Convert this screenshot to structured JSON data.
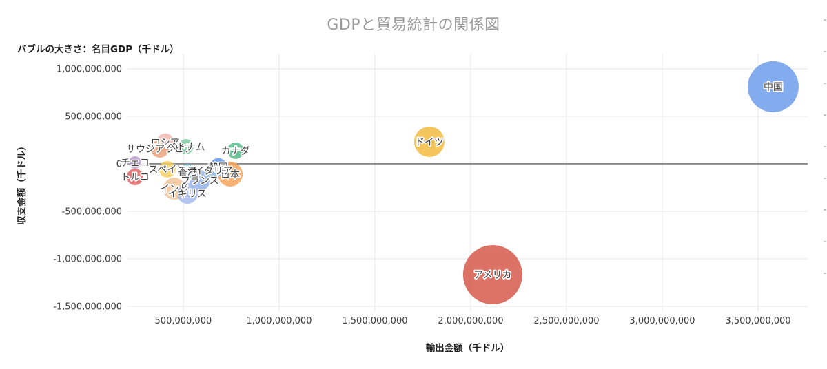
{
  "chart_data": {
    "type": "bubble",
    "title": "GDPと貿易統計の関係図",
    "size_note": "バブルの大きさ：名目GDP（千ドル）",
    "xlabel": "輸出金額（千ドル）",
    "ylabel": "収支金額（千ドル）",
    "xlim": [
      209000000,
      3759000000
    ],
    "ylim": [
      -1558000000,
      1159000000
    ],
    "x_ticks": [
      500000000,
      1000000000,
      1500000000,
      2000000000,
      2500000000,
      3000000000,
      3500000000
    ],
    "y_ticks": [
      1000000000,
      500000000,
      0,
      -500000000,
      -1000000000,
      -1500000000
    ],
    "grid": true,
    "legend_position": "none",
    "points": [
      {
        "label": "中国",
        "x": 3579000000,
        "y": 812000000,
        "r": 37,
        "color": "#6d9eeb"
      },
      {
        "label": "アメリカ",
        "x": 2115000000,
        "y": -1167000000,
        "r": 43,
        "color": "#d6594b"
      },
      {
        "label": "ドイツ",
        "x": 1784000000,
        "y": 232000000,
        "r": 22,
        "color": "#f2bb3f"
      },
      {
        "label": "日本",
        "x": 745000000,
        "y": -109000000,
        "r": 18,
        "color": "#f6a55c"
      },
      {
        "label": "韓国",
        "x": 683000000,
        "y": -36000000,
        "r": 13,
        "color": "#5e97f6"
      },
      {
        "label": "カナダ",
        "x": 773000000,
        "y": 138000000,
        "r": 12,
        "color": "#57bb8a"
      },
      {
        "label": "イタリア",
        "x": 658000000,
        "y": -72000000,
        "r": 12,
        "color": "#9dc3e6"
      },
      {
        "label": "香港",
        "x": 522000000,
        "y": -80000000,
        "r": 11,
        "color": "#7ec8d2"
      },
      {
        "label": "フランス",
        "x": 586000000,
        "y": -174000000,
        "r": 15,
        "color": "#94b3f0"
      },
      {
        "label": "イギリス",
        "x": 522000000,
        "y": -312000000,
        "r": 15,
        "color": "#a5b8ea"
      },
      {
        "label": "インド",
        "x": 453000000,
        "y": -261000000,
        "r": 16,
        "color": "#f3c59a"
      },
      {
        "label": "スペイン",
        "x": 417000000,
        "y": -58000000,
        "r": 12,
        "color": "#f5cf5e"
      },
      {
        "label": "ベトナム",
        "x": 514000000,
        "y": 181000000,
        "r": 11,
        "color": "#80cba4"
      },
      {
        "label": "ロシア",
        "x": 406000000,
        "y": 225000000,
        "r": 13,
        "color": "#f3b8b0"
      },
      {
        "label": "サウジアラビア",
        "x": 378000000,
        "y": 159000000,
        "r": 13,
        "color": "#eba47e"
      },
      {
        "label": "トルコ",
        "x": 248000000,
        "y": -138000000,
        "r": 12,
        "color": "#e06666"
      },
      {
        "label": "チェコ",
        "x": 248000000,
        "y": 14000000,
        "r": 9,
        "color": "#b79ad1"
      }
    ]
  },
  "colors": {
    "title": "#9a9a9a",
    "grid": "#e6e6e6",
    "zero_line": "#5f5f5f",
    "tick_label": "#3c3c3c",
    "bubble_label": "#3d3d3d",
    "background": "#ffffff"
  }
}
